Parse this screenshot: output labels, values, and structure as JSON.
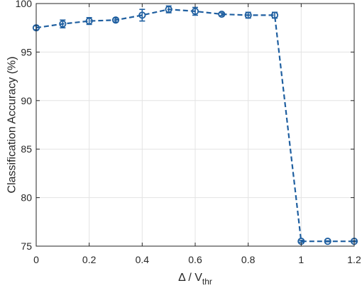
{
  "chart_data": {
    "type": "line",
    "title": "",
    "xlabel_main": "Δ / V",
    "xlabel_sub": "thr",
    "ylabel": "Classification Accuracy (%)",
    "xlim": [
      0,
      1.2
    ],
    "ylim": [
      75,
      100
    ],
    "x_ticks": [
      0,
      0.2,
      0.4,
      0.6,
      0.8,
      1,
      1.2
    ],
    "x_tick_labels": [
      "0",
      "0.2",
      "0.4",
      "0.6",
      "0.8",
      "1",
      "1.2"
    ],
    "y_ticks": [
      75,
      80,
      85,
      90,
      95,
      100
    ],
    "y_tick_labels": [
      "75",
      "80",
      "85",
      "90",
      "95",
      "100"
    ],
    "grid": true,
    "series": [
      {
        "line_style": "dashed",
        "marker": "circle",
        "color": "#1f5fa0",
        "x": [
          0,
          0.1,
          0.2,
          0.3,
          0.4,
          0.5,
          0.6,
          0.7,
          0.8,
          0.9,
          1.0,
          1.1,
          1.2
        ],
        "y": [
          97.5,
          97.9,
          98.2,
          98.3,
          98.8,
          99.4,
          99.2,
          98.9,
          98.8,
          98.8,
          75.5,
          75.5,
          75.5
        ],
        "error": [
          0.2,
          0.4,
          0.35,
          0.2,
          0.6,
          0.35,
          0.4,
          0.15,
          0.3,
          0.3,
          0.1,
          0.05,
          0.05
        ]
      }
    ]
  }
}
